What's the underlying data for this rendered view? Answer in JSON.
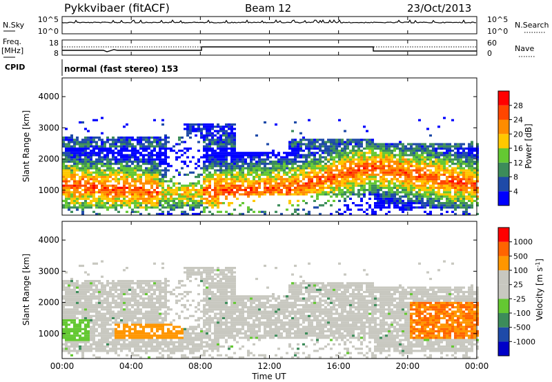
{
  "header": {
    "station": "Pykkvibaer (fitACF)",
    "beam": "Beam 12",
    "date": "23/Oct/2013"
  },
  "top_panels": {
    "nsky_label": "N.Sky",
    "nsky_ticks": [
      "10^5",
      "10^0"
    ],
    "nsearch_label": "N.Search",
    "nsearch_ticks": [
      "10^5",
      "10^0"
    ],
    "freq_label": "Freq.",
    "freq_unit": "[MHz]",
    "freq_ticks": [
      "18",
      "8"
    ],
    "nave_label": "Nave",
    "nave_ticks": [
      "60",
      "0"
    ],
    "cpid_label": "CPID",
    "cpid_text": "normal (fast stereo) 153"
  },
  "colors": {
    "power_scale": [
      "#0000ff",
      "#1e4aa8",
      "#3c8c5a",
      "#64c832",
      "#ffc800",
      "#ff8c00",
      "#ff4600",
      "#ff0000"
    ],
    "velocity_scale": [
      "#ff0000",
      "#ff6400",
      "#ff9600",
      "#c8c8c0",
      "#c8c8c0",
      "#64c832",
      "#3c8c5a",
      "#1e4aa8",
      "#0000c8"
    ]
  },
  "chart_data": [
    {
      "type": "heatmap",
      "title": "",
      "xlabel": "",
      "ylabel": "Slant Range [km]",
      "x_ticks": [
        "00:00",
        "04:00",
        "08:00",
        "12:00",
        "16:00",
        "20:00",
        "00:00"
      ],
      "y_ticks": [
        1000,
        2000,
        3000,
        4000
      ],
      "ylim": [
        200,
        4600
      ],
      "colorbar": {
        "label": "Power [dB]",
        "ticks": [
          4,
          8,
          12,
          16,
          20,
          24,
          28
        ]
      }
    },
    {
      "type": "heatmap",
      "title": "",
      "xlabel": "Time UT",
      "ylabel": "Slant Range [km]",
      "x_ticks": [
        "00:00",
        "04:00",
        "08:00",
        "12:00",
        "16:00",
        "20:00",
        "00:00"
      ],
      "y_ticks": [
        1000,
        2000,
        3000,
        4000
      ],
      "ylim": [
        200,
        4600
      ],
      "colorbar": {
        "label": "Velocity [m s^-1]",
        "ticks": [
          1000,
          500,
          100,
          25,
          -25,
          -100,
          -500,
          -1000
        ]
      }
    }
  ]
}
